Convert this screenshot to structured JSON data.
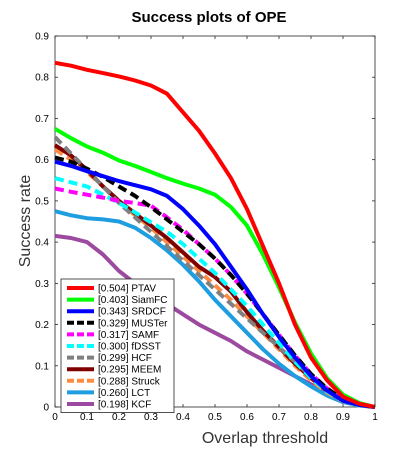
{
  "chart_data": {
    "type": "line",
    "title": "Success plots of OPE",
    "xlabel": "Overlap threshold",
    "ylabel": "Success rate",
    "xlim": [
      0,
      1
    ],
    "ylim": [
      0,
      0.9
    ],
    "xticks": [
      "0",
      "0.1",
      "0.2",
      "0.3",
      "0.4",
      "0.5",
      "0.6",
      "0.7",
      "0.8",
      "0.9",
      "1"
    ],
    "yticks": [
      "0",
      "0.1",
      "0.2",
      "0.3",
      "0.4",
      "0.5",
      "0.6",
      "0.7",
      "0.8",
      "0.9"
    ],
    "grid": false,
    "legend_position": "bottom-left",
    "series": [
      {
        "name": "[0.504] PTAV",
        "color": "#ff0000",
        "dash": "solid",
        "x": [
          0,
          0.05,
          0.1,
          0.15,
          0.2,
          0.25,
          0.3,
          0.35,
          0.4,
          0.45,
          0.5,
          0.55,
          0.6,
          0.65,
          0.7,
          0.75,
          0.8,
          0.85,
          0.9,
          0.95,
          1.0
        ],
        "y": [
          0.835,
          0.828,
          0.818,
          0.81,
          0.802,
          0.792,
          0.78,
          0.76,
          0.715,
          0.67,
          0.615,
          0.555,
          0.48,
          0.39,
          0.3,
          0.2,
          0.12,
          0.065,
          0.025,
          0.008,
          0
        ]
      },
      {
        "name": "[0.403] SiamFC",
        "color": "#00ff00",
        "dash": "solid",
        "x": [
          0,
          0.05,
          0.1,
          0.15,
          0.2,
          0.25,
          0.3,
          0.35,
          0.4,
          0.45,
          0.5,
          0.55,
          0.6,
          0.65,
          0.7,
          0.75,
          0.8,
          0.85,
          0.9,
          0.95,
          1.0
        ],
        "y": [
          0.675,
          0.652,
          0.632,
          0.617,
          0.598,
          0.585,
          0.57,
          0.555,
          0.542,
          0.53,
          0.515,
          0.485,
          0.44,
          0.37,
          0.29,
          0.205,
          0.13,
          0.07,
          0.03,
          0.01,
          0
        ]
      },
      {
        "name": "[0.343] SRDCF",
        "color": "#0000ff",
        "dash": "solid",
        "x": [
          0,
          0.05,
          0.1,
          0.15,
          0.2,
          0.25,
          0.3,
          0.35,
          0.4,
          0.45,
          0.5,
          0.55,
          0.6,
          0.65,
          0.7,
          0.75,
          0.8,
          0.85,
          0.9,
          0.95,
          1.0
        ],
        "y": [
          0.595,
          0.585,
          0.572,
          0.56,
          0.548,
          0.538,
          0.528,
          0.512,
          0.48,
          0.44,
          0.395,
          0.34,
          0.285,
          0.225,
          0.17,
          0.12,
          0.075,
          0.04,
          0.015,
          0.005,
          0
        ]
      },
      {
        "name": "[0.329] MUSTer",
        "color": "#000000",
        "dash": "dash",
        "x": [
          0,
          0.05,
          0.1,
          0.15,
          0.2,
          0.25,
          0.3,
          0.35,
          0.4,
          0.45,
          0.5,
          0.55,
          0.6,
          0.65,
          0.7,
          0.75,
          0.8,
          0.85,
          0.9,
          0.95,
          1.0
        ],
        "y": [
          0.605,
          0.595,
          0.578,
          0.558,
          0.535,
          0.512,
          0.485,
          0.455,
          0.425,
          0.395,
          0.36,
          0.32,
          0.275,
          0.225,
          0.175,
          0.125,
          0.08,
          0.045,
          0.018,
          0.005,
          0
        ]
      },
      {
        "name": "[0.317] SAMF",
        "color": "#ff00ff",
        "dash": "dash",
        "x": [
          0,
          0.05,
          0.1,
          0.15,
          0.2,
          0.25,
          0.3,
          0.35,
          0.4,
          0.45,
          0.5,
          0.55,
          0.6,
          0.65,
          0.7,
          0.75,
          0.8,
          0.85,
          0.9,
          0.95,
          1.0
        ],
        "y": [
          0.53,
          0.522,
          0.515,
          0.508,
          0.5,
          0.495,
          0.488,
          0.46,
          0.43,
          0.395,
          0.36,
          0.32,
          0.275,
          0.225,
          0.175,
          0.125,
          0.08,
          0.045,
          0.018,
          0.005,
          0
        ]
      },
      {
        "name": "[0.300] fDSST",
        "color": "#00ffff",
        "dash": "dash",
        "x": [
          0,
          0.05,
          0.1,
          0.15,
          0.2,
          0.25,
          0.3,
          0.35,
          0.4,
          0.45,
          0.5,
          0.55,
          0.6,
          0.65,
          0.7,
          0.75,
          0.8,
          0.85,
          0.9,
          0.95,
          1.0
        ],
        "y": [
          0.555,
          0.545,
          0.535,
          0.515,
          0.495,
          0.472,
          0.448,
          0.425,
          0.395,
          0.36,
          0.325,
          0.285,
          0.245,
          0.2,
          0.155,
          0.11,
          0.07,
          0.038,
          0.015,
          0.004,
          0
        ]
      },
      {
        "name": "[0.299] HCF",
        "color": "#808080",
        "dash": "dash",
        "x": [
          0,
          0.05,
          0.1,
          0.15,
          0.2,
          0.25,
          0.3,
          0.35,
          0.4,
          0.45,
          0.5,
          0.55,
          0.6,
          0.65,
          0.7,
          0.75,
          0.8,
          0.85,
          0.9,
          0.95,
          1.0
        ],
        "y": [
          0.655,
          0.615,
          0.575,
          0.535,
          0.495,
          0.46,
          0.425,
          0.39,
          0.355,
          0.32,
          0.285,
          0.25,
          0.215,
          0.18,
          0.145,
          0.11,
          0.075,
          0.045,
          0.02,
          0.006,
          0
        ]
      },
      {
        "name": "[0.295] MEEM",
        "color": "#800000",
        "dash": "solid",
        "x": [
          0,
          0.05,
          0.1,
          0.15,
          0.2,
          0.25,
          0.3,
          0.35,
          0.4,
          0.45,
          0.5,
          0.55,
          0.6,
          0.65,
          0.7,
          0.75,
          0.8,
          0.85,
          0.9,
          0.95,
          1.0
        ],
        "y": [
          0.635,
          0.61,
          0.575,
          0.535,
          0.5,
          0.47,
          0.44,
          0.41,
          0.375,
          0.34,
          0.315,
          0.28,
          0.23,
          0.185,
          0.145,
          0.105,
          0.07,
          0.04,
          0.016,
          0.005,
          0
        ]
      },
      {
        "name": "[0.288] Struck",
        "color": "#ff8c40",
        "dash": "dash",
        "x": [
          0,
          0.05,
          0.1,
          0.15,
          0.2,
          0.25,
          0.3,
          0.35,
          0.4,
          0.45,
          0.5,
          0.55,
          0.6,
          0.65,
          0.7,
          0.75,
          0.8,
          0.85,
          0.9,
          0.95,
          1.0
        ],
        "y": [
          0.625,
          0.6,
          0.57,
          0.535,
          0.5,
          0.465,
          0.435,
          0.4,
          0.365,
          0.33,
          0.295,
          0.26,
          0.22,
          0.18,
          0.14,
          0.1,
          0.065,
          0.035,
          0.014,
          0.004,
          0
        ]
      },
      {
        "name": "[0.260] LCT",
        "color": "#1e9ee0",
        "dash": "solid",
        "x": [
          0,
          0.05,
          0.1,
          0.15,
          0.2,
          0.25,
          0.3,
          0.35,
          0.4,
          0.45,
          0.5,
          0.55,
          0.6,
          0.65,
          0.7,
          0.75,
          0.8,
          0.85,
          0.9,
          0.95,
          1.0
        ],
        "y": [
          0.475,
          0.465,
          0.458,
          0.455,
          0.45,
          0.435,
          0.41,
          0.38,
          0.345,
          0.305,
          0.26,
          0.22,
          0.18,
          0.14,
          0.105,
          0.075,
          0.05,
          0.028,
          0.012,
          0.004,
          0
        ]
      },
      {
        "name": "[0.198] KCF",
        "color": "#9b4aa0",
        "dash": "solid",
        "x": [
          0,
          0.05,
          0.1,
          0.15,
          0.2,
          0.25,
          0.3,
          0.35,
          0.4,
          0.45,
          0.5,
          0.55,
          0.6,
          0.65,
          0.7,
          0.75,
          0.8,
          0.85,
          0.9,
          0.95,
          1.0
        ],
        "y": [
          0.415,
          0.41,
          0.4,
          0.37,
          0.33,
          0.3,
          0.275,
          0.25,
          0.225,
          0.2,
          0.18,
          0.16,
          0.135,
          0.115,
          0.095,
          0.075,
          0.055,
          0.035,
          0.018,
          0.006,
          0
        ]
      }
    ]
  }
}
